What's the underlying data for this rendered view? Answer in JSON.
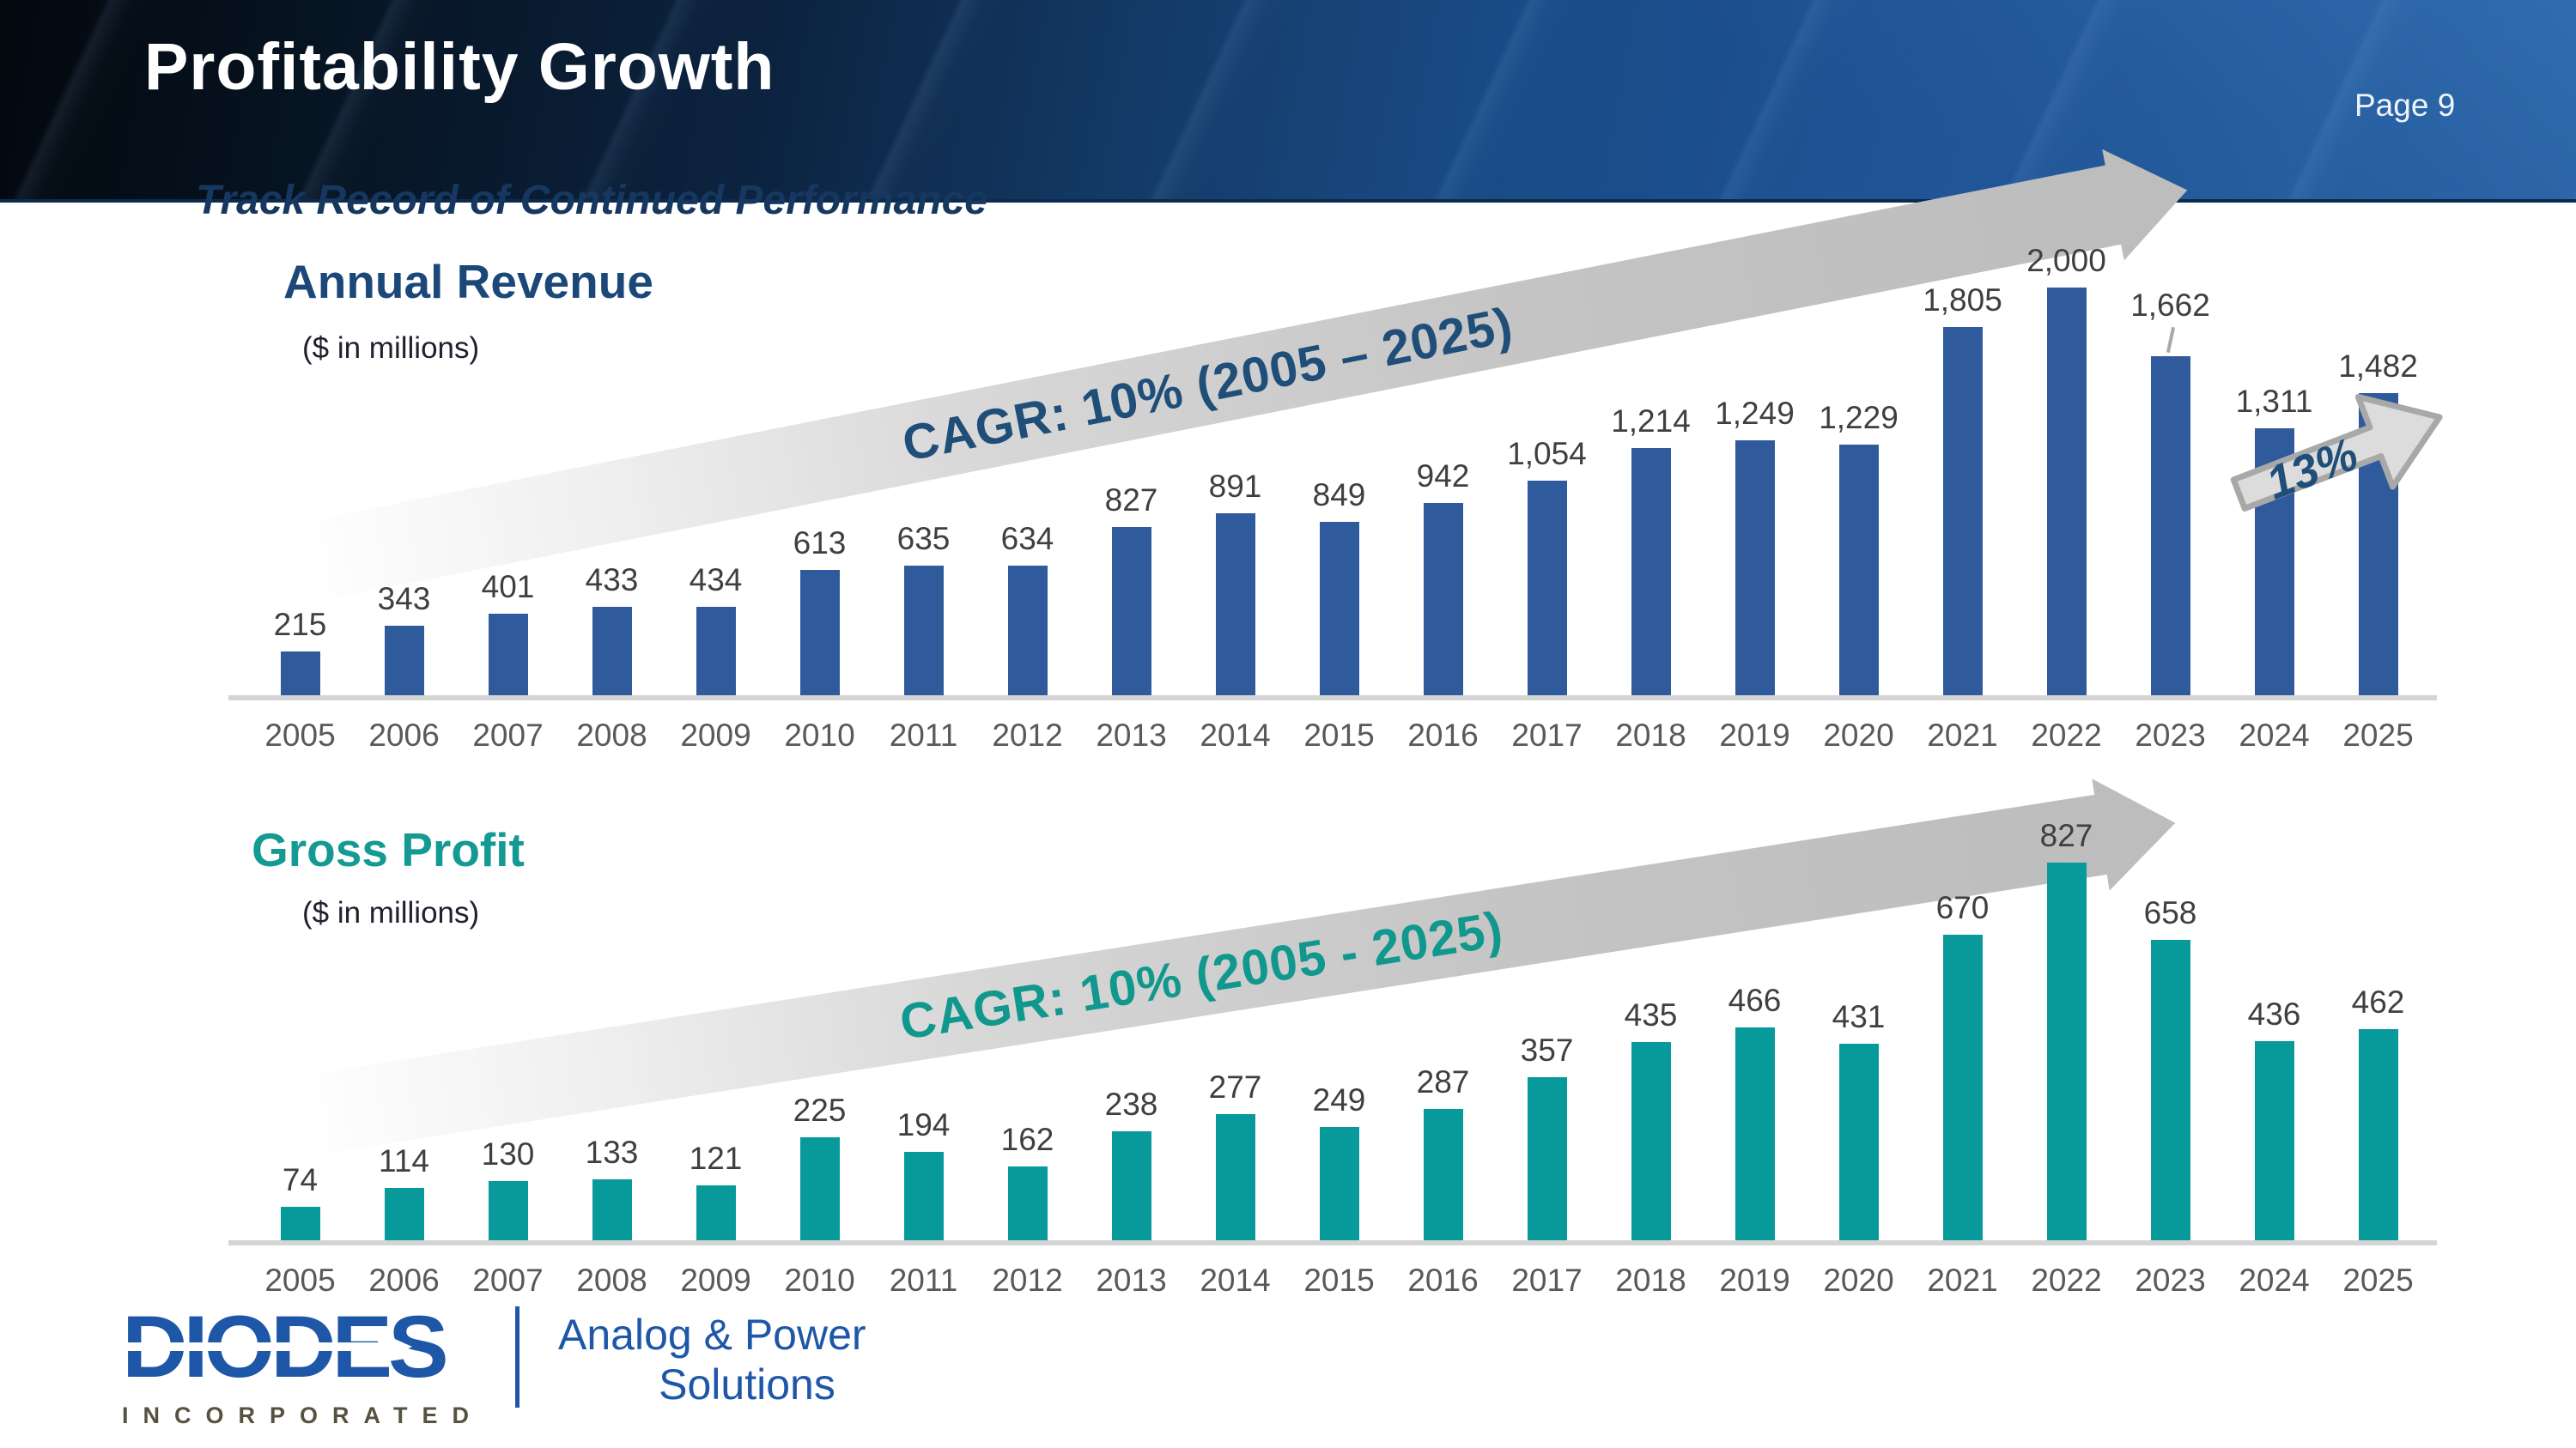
{
  "header": {
    "title": "Profitability Growth",
    "page_label": "Page 9"
  },
  "subtitle": "Track Record of Continued Performance",
  "colors": {
    "revenue_bar": "#2f5a9c",
    "gross_profit_bar": "#089a9b",
    "revenue_accent": "#1f4e79",
    "gross_profit_accent": "#149a93",
    "header_blue": "#1b4e8d",
    "arrow_gray": "#bdbdbd"
  },
  "chart_data": [
    {
      "type": "bar",
      "title": "Annual Revenue",
      "units": "($ in millions)",
      "cagr_label": "CAGR: 10% (2005 – 2025)",
      "annotation": "13%",
      "bar_color": "#2f5a9c",
      "legend_position": "none",
      "grid": false,
      "ylim": [
        0,
        2000
      ],
      "categories": [
        "2005",
        "2006",
        "2007",
        "2008",
        "2009",
        "2010",
        "2011",
        "2012",
        "2013",
        "2014",
        "2015",
        "2016",
        "2017",
        "2018",
        "2019",
        "2020",
        "2021",
        "2022",
        "2023",
        "2024",
        "2025"
      ],
      "values": [
        215,
        343,
        401,
        433,
        434,
        613,
        635,
        634,
        827,
        891,
        849,
        942,
        1054,
        1214,
        1249,
        1229,
        1805,
        2000,
        1662,
        1311,
        1482
      ],
      "labels": [
        "215",
        "343",
        "401",
        "433",
        "434",
        "613",
        "635",
        "634",
        "827",
        "891",
        "849",
        "942",
        "1,054",
        "1,214",
        "1,249",
        "1,229",
        "1,805",
        "2,000",
        "1,662",
        "1,311",
        "1,482"
      ]
    },
    {
      "type": "bar",
      "title": "Gross Profit",
      "units": "($ in millions)",
      "cagr_label": "CAGR: 10% (2005 - 2025)",
      "bar_color": "#089a9b",
      "legend_position": "none",
      "grid": false,
      "ylim": [
        0,
        827
      ],
      "categories": [
        "2005",
        "2006",
        "2007",
        "2008",
        "2009",
        "2010",
        "2011",
        "2012",
        "2013",
        "2014",
        "2015",
        "2016",
        "2017",
        "2018",
        "2019",
        "2020",
        "2021",
        "2022",
        "2023",
        "2024",
        "2025"
      ],
      "values": [
        74,
        114,
        130,
        133,
        121,
        225,
        194,
        162,
        238,
        277,
        249,
        287,
        357,
        435,
        466,
        431,
        670,
        827,
        658,
        436,
        462
      ],
      "labels": [
        "74",
        "114",
        "130",
        "133",
        "121",
        "225",
        "194",
        "162",
        "238",
        "277",
        "249",
        "287",
        "357",
        "435",
        "466",
        "431",
        "670",
        "827",
        "658",
        "436",
        "462"
      ]
    }
  ],
  "footer": {
    "logo_text": "DIODES",
    "logo_sub": "INCORPORATED",
    "tagline_line1": "Analog & Power",
    "tagline_line2": "Solutions"
  }
}
